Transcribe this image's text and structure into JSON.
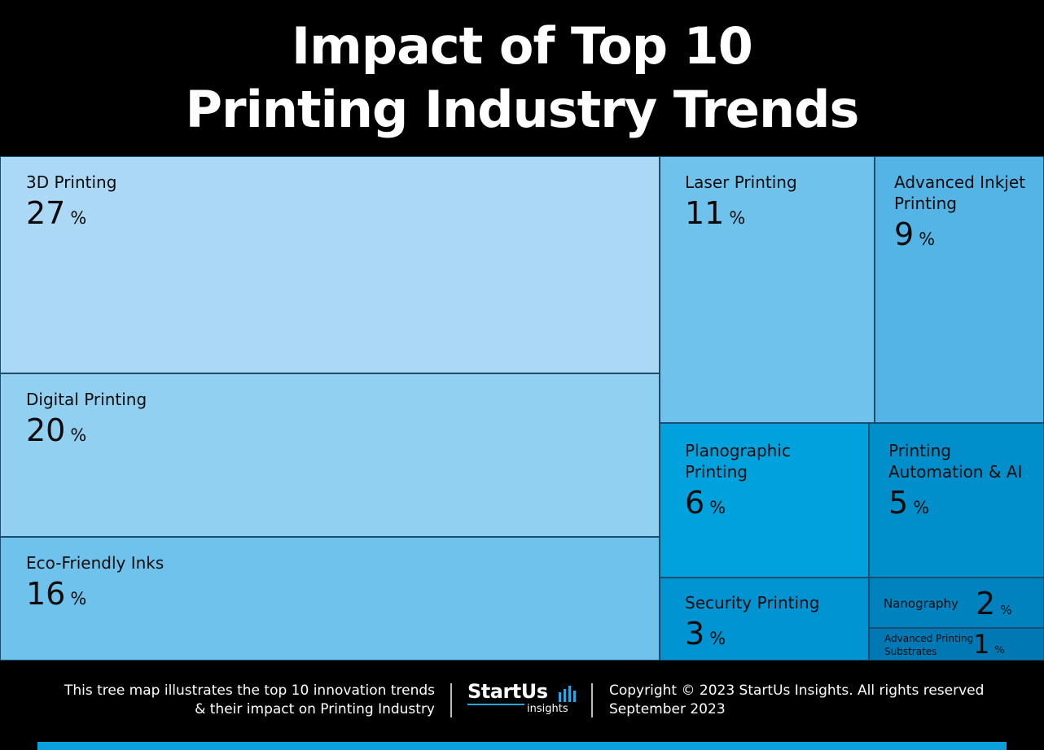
{
  "title": {
    "line1": "Impact of Top 10",
    "line2": "Printing Industry Trends"
  },
  "chart_data": {
    "type": "treemap",
    "unit": "%",
    "items": [
      {
        "label": "3D Printing",
        "value": 27,
        "color": "#abd9f5"
      },
      {
        "label": "Digital Printing",
        "value": 20,
        "color": "#92d0f2"
      },
      {
        "label": "Eco-Friendly Inks",
        "value": 16,
        "color": "#6fc2ec"
      },
      {
        "label": "Laser Printing",
        "value": 11,
        "color": "#6fc2ec"
      },
      {
        "label": "Advanced Inkjet Printing",
        "value": 9,
        "color": "#54b4e6"
      },
      {
        "label": "Planographic Printing",
        "value": 6,
        "color": "#00a2dd"
      },
      {
        "label": "Printing Automation & AI",
        "value": 5,
        "color": "#008fcb"
      },
      {
        "label": "Security Printing",
        "value": 3,
        "color": "#0094d3"
      },
      {
        "label": "Nanography",
        "value": 2,
        "color": "#0082be"
      },
      {
        "label": "Advanced Printing Substrates",
        "value": 1,
        "color": "#0078b3"
      }
    ]
  },
  "footer": {
    "description_line1": "This tree map illustrates the top 10 innovation trends",
    "description_line2": "& their impact on Printing Industry",
    "logo_main": "StartUs",
    "logo_sub": "insights",
    "copyright": "Copyright © 2023 StartUs Insights. All rights reserved",
    "date": "September 2023"
  },
  "colors": {
    "background": "#000000",
    "accent_bar": "#0aa0db"
  }
}
